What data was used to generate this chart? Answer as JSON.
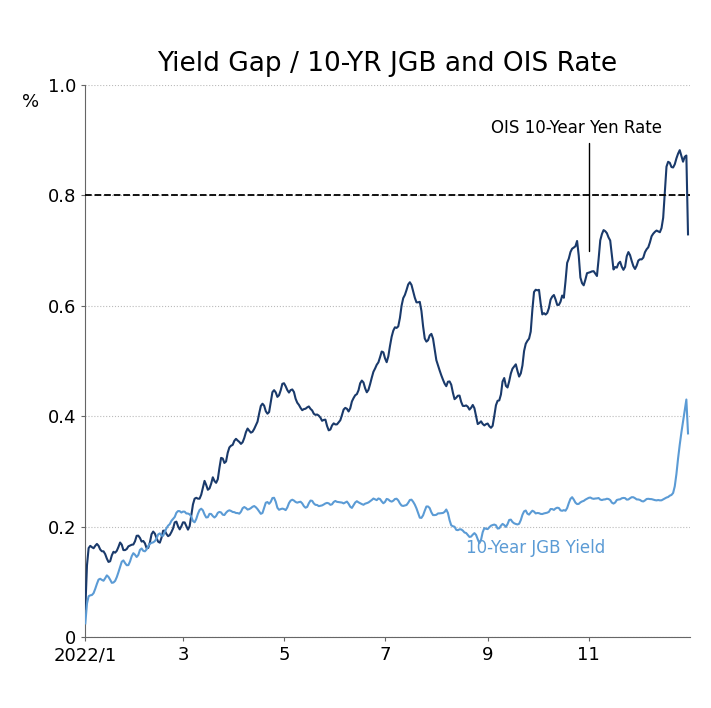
{
  "title": "Yield Gap / 10-YR JGB and OIS Rate",
  "ylabel": "%",
  "xlim": [
    0,
    365
  ],
  "ylim": [
    0,
    1.0
  ],
  "yticks": [
    0,
    0.2,
    0.4,
    0.6,
    0.8,
    1.0
  ],
  "ytick_labels": [
    "0",
    "0.2",
    "0.4",
    "0.6",
    "0.8",
    "1.0"
  ],
  "xtick_positions": [
    0,
    59,
    120,
    181,
    243,
    304
  ],
  "xtick_labels": [
    "2022/1",
    "3",
    "5",
    "7",
    "9",
    "11"
  ],
  "hline_y": 0.8,
  "ois_label": "OIS 10-Year Yen Rate",
  "jgb_label": "10-Year JGB Yield",
  "ois_color": "#1a3a6b",
  "jgb_color": "#5b9bd5",
  "grid_color": "#bbbbbb",
  "bg_color": "#ffffff",
  "title_fontsize": 19,
  "label_fontsize": 13
}
